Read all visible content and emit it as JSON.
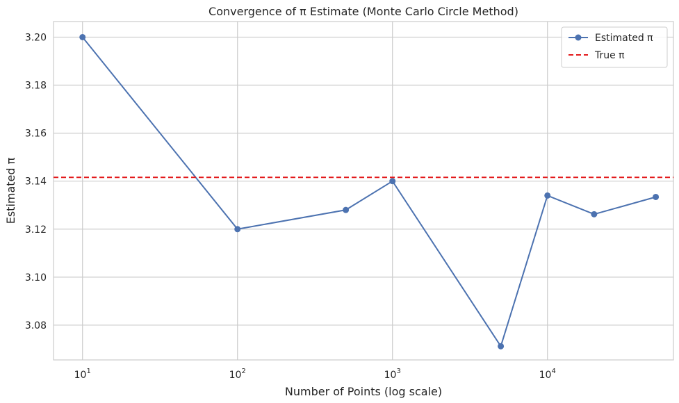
{
  "chart_data": {
    "type": "line",
    "title": "Convergence of π Estimate (Monte Carlo Circle Method)",
    "xlabel": "Number of Points (log scale)",
    "ylabel": "Estimated π",
    "xscale": "log",
    "xlim": [
      6.5,
      65000
    ],
    "ylim": [
      3.0655,
      3.2065
    ],
    "x_ticks": [
      {
        "value": 10,
        "base": "10",
        "exp": "1"
      },
      {
        "value": 100,
        "base": "10",
        "exp": "2"
      },
      {
        "value": 1000,
        "base": "10",
        "exp": "3"
      },
      {
        "value": 10000,
        "base": "10",
        "exp": "4"
      }
    ],
    "y_ticks": [
      "3.08",
      "3.10",
      "3.12",
      "3.14",
      "3.16",
      "3.18",
      "3.20"
    ],
    "grid": true,
    "legend_position": "top-right",
    "series": [
      {
        "name": "Estimated π",
        "color": "#4c72b0",
        "style": "line-marker",
        "x": [
          10,
          100,
          500,
          1000,
          5000,
          10000,
          20000,
          50000
        ],
        "y": [
          3.2,
          3.12,
          3.128,
          3.14,
          3.0712,
          3.134,
          3.1262,
          3.1334
        ]
      },
      {
        "name": "True π",
        "color": "#e31a1c",
        "style": "dashed",
        "y_const": 3.14159
      }
    ]
  }
}
